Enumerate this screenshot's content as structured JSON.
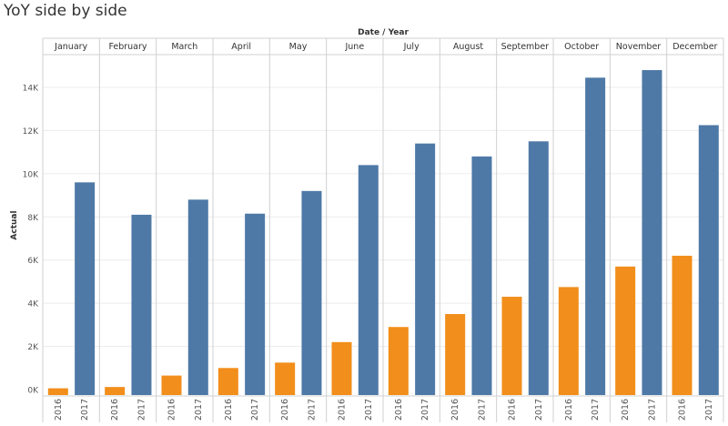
{
  "title": "YoY side by side",
  "chart_data": {
    "type": "bar",
    "title": "YoY side by side",
    "column_header": "Date / Year",
    "ylabel": "Actual",
    "ylim": [
      0,
      15000
    ],
    "y_ticks": [
      0,
      2000,
      4000,
      6000,
      8000,
      10000,
      12000,
      14000
    ],
    "y_tick_labels": [
      "0K",
      "2K",
      "4K",
      "6K",
      "8K",
      "10K",
      "12K",
      "14K"
    ],
    "categories": [
      "January",
      "February",
      "March",
      "April",
      "May",
      "June",
      "July",
      "August",
      "September",
      "October",
      "November",
      "December"
    ],
    "years": [
      "2016",
      "2017"
    ],
    "series": [
      {
        "name": "2016",
        "values": [
          60,
          120,
          650,
          1000,
          1250,
          2200,
          2900,
          3500,
          4300,
          4750,
          5700,
          6200
        ]
      },
      {
        "name": "2017",
        "values": [
          9600,
          8100,
          8800,
          8150,
          9200,
          10400,
          11400,
          10800,
          11500,
          14450,
          14800,
          12250
        ]
      }
    ],
    "colors": {
      "2016": "#F28E1B",
      "2017": "#4E79A7"
    },
    "grid": true
  }
}
